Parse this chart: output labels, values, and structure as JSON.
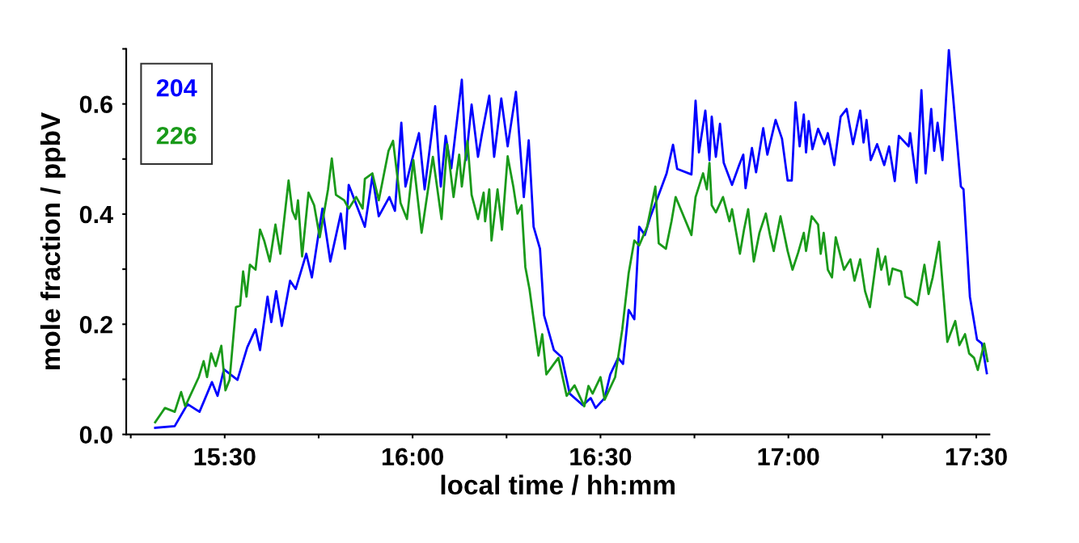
{
  "chart_data": {
    "type": "line",
    "xlabel": "local time / hh:mm",
    "ylabel": "mole fraction / ppbV",
    "xlim": [
      15.238,
      17.535
    ],
    "ylim": [
      0,
      0.7
    ],
    "xticks": [
      {
        "value": 15.25,
        "label": null
      },
      {
        "value": 15.5,
        "label": "15:30"
      },
      {
        "value": 15.75,
        "label": null
      },
      {
        "value": 16,
        "label": "16:00"
      },
      {
        "value": 16.25,
        "label": null
      },
      {
        "value": 16.5,
        "label": "16:30"
      },
      {
        "value": 16.75,
        "label": null
      },
      {
        "value": 17,
        "label": "17:00"
      },
      {
        "value": 17.25,
        "label": null
      },
      {
        "value": 17.5,
        "label": "17:30"
      }
    ],
    "yticks": [
      {
        "value": 0,
        "label": "0.0"
      },
      {
        "value": 0.1,
        "label": null
      },
      {
        "value": 0.2,
        "label": "0.2"
      },
      {
        "value": 0.3,
        "label": null
      },
      {
        "value": 0.4,
        "label": "0.4"
      },
      {
        "value": 0.5,
        "label": null
      },
      {
        "value": 0.6,
        "label": "0.6"
      },
      {
        "value": 0.7,
        "label": null
      }
    ],
    "grid": false,
    "legend": "top left",
    "marker": "none",
    "line_style": "solid",
    "series": [
      {
        "name": "204",
        "color": "#0000ff",
        "x": [
          15.315,
          15.367,
          15.401,
          15.433,
          15.466,
          15.481,
          15.498,
          15.534,
          15.56,
          15.582,
          15.594,
          15.614,
          15.624,
          15.637,
          15.652,
          15.674,
          15.689,
          15.717,
          15.732,
          15.76,
          15.781,
          15.809,
          15.82,
          15.83,
          15.873,
          15.893,
          15.91,
          15.938,
          15.953,
          15.97,
          15.981,
          16.002,
          16.017,
          16.032,
          16.06,
          16.075,
          16.088,
          16.103,
          16.131,
          16.142,
          16.157,
          16.174,
          16.185,
          16.204,
          16.217,
          16.236,
          16.253,
          16.275,
          16.296,
          16.309,
          16.322,
          16.339,
          16.35,
          16.376,
          16.397,
          16.418,
          16.453,
          16.474,
          16.487,
          16.511,
          16.526,
          16.547,
          16.56,
          16.575,
          16.59,
          16.603,
          16.618,
          16.633,
          16.655,
          16.676,
          16.693,
          16.704,
          16.742,
          16.753,
          16.762,
          16.779,
          16.79,
          16.796,
          16.807,
          16.818,
          16.828,
          16.85,
          16.869,
          16.88,
          16.886,
          16.903,
          16.914,
          16.933,
          16.944,
          16.966,
          16.983,
          16.998,
          17.009,
          17.019,
          17.03,
          17.041,
          17.047,
          17.054,
          17.064,
          17.079,
          17.096,
          17.105,
          17.122,
          17.139,
          17.155,
          17.172,
          17.191,
          17.2,
          17.208,
          17.219,
          17.236,
          17.255,
          17.268,
          17.283,
          17.294,
          17.32,
          17.324,
          17.341,
          17.354,
          17.365,
          17.38,
          17.388,
          17.397,
          17.41,
          17.427,
          17.438,
          17.459,
          17.466,
          17.483,
          17.502,
          17.515,
          17.528
        ],
        "values": [
          0.012,
          0.015,
          0.055,
          0.041,
          0.095,
          0.07,
          0.118,
          0.099,
          0.158,
          0.191,
          0.153,
          0.25,
          0.204,
          0.26,
          0.197,
          0.279,
          0.264,
          0.328,
          0.285,
          0.41,
          0.314,
          0.401,
          0.337,
          0.453,
          0.377,
          0.469,
          0.396,
          0.431,
          0.406,
          0.566,
          0.45,
          0.508,
          0.547,
          0.445,
          0.596,
          0.45,
          0.542,
          0.483,
          0.644,
          0.498,
          0.599,
          0.504,
          0.547,
          0.615,
          0.504,
          0.61,
          0.523,
          0.622,
          0.431,
          0.534,
          0.377,
          0.337,
          0.216,
          0.153,
          0.14,
          0.074,
          0.053,
          0.066,
          0.048,
          0.066,
          0.109,
          0.139,
          0.128,
          0.226,
          0.209,
          0.377,
          0.362,
          0.396,
          0.435,
          0.474,
          0.526,
          0.482,
          0.472,
          0.606,
          0.512,
          0.588,
          0.498,
          0.577,
          0.504,
          0.564,
          0.493,
          0.453,
          0.489,
          0.508,
          0.447,
          0.52,
          0.476,
          0.556,
          0.508,
          0.571,
          0.537,
          0.461,
          0.461,
          0.603,
          0.523,
          0.581,
          0.512,
          0.569,
          0.518,
          0.555,
          0.527,
          0.547,
          0.489,
          0.577,
          0.591,
          0.527,
          0.588,
          0.53,
          0.571,
          0.498,
          0.527,
          0.489,
          0.523,
          0.46,
          0.542,
          0.523,
          0.547,
          0.457,
          0.625,
          0.474,
          0.591,
          0.515,
          0.566,
          0.498,
          0.698,
          0.615,
          0.45,
          0.445,
          0.25,
          0.172,
          0.165,
          0.111
        ]
      },
      {
        "name": "226",
        "color": "#1a9a1a",
        "x": [
          15.315,
          15.341,
          15.367,
          15.384,
          15.395,
          15.431,
          15.444,
          15.453,
          15.464,
          15.476,
          15.491,
          15.502,
          15.513,
          15.53,
          15.541,
          15.549,
          15.558,
          15.567,
          15.582,
          15.594,
          15.605,
          15.62,
          15.635,
          15.648,
          15.67,
          15.68,
          15.689,
          15.695,
          15.706,
          15.723,
          15.738,
          15.753,
          15.775,
          15.785,
          15.796,
          15.818,
          15.83,
          15.85,
          15.867,
          15.873,
          15.893,
          15.91,
          15.936,
          15.948,
          15.968,
          15.985,
          16.002,
          16.024,
          16.054,
          16.077,
          16.092,
          16.109,
          16.124,
          16.131,
          16.146,
          16.157,
          16.174,
          16.189,
          16.193,
          16.204,
          16.21,
          16.226,
          16.238,
          16.253,
          16.268,
          16.279,
          16.29,
          16.3,
          16.311,
          16.335,
          16.345,
          16.356,
          16.376,
          16.388,
          16.41,
          16.431,
          16.457,
          16.468,
          16.479,
          16.5,
          16.511,
          16.539,
          16.558,
          16.575,
          16.59,
          16.603,
          16.624,
          16.646,
          16.655,
          16.674,
          16.689,
          16.7,
          16.742,
          16.753,
          16.773,
          16.783,
          16.79,
          16.796,
          16.807,
          16.826,
          16.843,
          16.85,
          16.871,
          16.882,
          16.893,
          16.908,
          16.923,
          16.94,
          16.951,
          16.961,
          16.979,
          16.998,
          17.011,
          17.026,
          17.041,
          17.047,
          17.062,
          17.079,
          17.086,
          17.094,
          17.105,
          17.116,
          17.126,
          17.148,
          17.165,
          17.176,
          17.191,
          17.204,
          17.217,
          17.238,
          17.247,
          17.258,
          17.268,
          17.277,
          17.3,
          17.311,
          17.326,
          17.343,
          17.362,
          17.373,
          17.384,
          17.401,
          17.423,
          17.444,
          17.455,
          17.47,
          17.481,
          17.494,
          17.504,
          17.521,
          17.53
        ],
        "values": [
          0.022,
          0.048,
          0.041,
          0.077,
          0.051,
          0.104,
          0.133,
          0.104,
          0.147,
          0.124,
          0.161,
          0.08,
          0.099,
          0.231,
          0.234,
          0.296,
          0.25,
          0.308,
          0.299,
          0.372,
          0.352,
          0.314,
          0.381,
          0.328,
          0.461,
          0.406,
          0.391,
          0.425,
          0.323,
          0.439,
          0.416,
          0.358,
          0.445,
          0.501,
          0.435,
          0.425,
          0.41,
          0.431,
          0.41,
          0.464,
          0.474,
          0.425,
          0.515,
          0.533,
          0.42,
          0.391,
          0.498,
          0.366,
          0.504,
          0.391,
          0.527,
          0.431,
          0.508,
          0.45,
          0.533,
          0.435,
          0.391,
          0.439,
          0.387,
          0.445,
          0.352,
          0.445,
          0.372,
          0.505,
          0.45,
          0.401,
          0.416,
          0.304,
          0.264,
          0.143,
          0.182,
          0.109,
          0.128,
          0.139,
          0.07,
          0.089,
          0.051,
          0.088,
          0.074,
          0.104,
          0.063,
          0.104,
          0.191,
          0.293,
          0.352,
          0.343,
          0.377,
          0.45,
          0.347,
          0.337,
          0.387,
          0.431,
          0.362,
          0.431,
          0.474,
          0.445,
          0.493,
          0.416,
          0.403,
          0.431,
          0.387,
          0.409,
          0.328,
          0.372,
          0.409,
          0.314,
          0.366,
          0.401,
          0.362,
          0.333,
          0.396,
          0.333,
          0.299,
          0.33,
          0.366,
          0.333,
          0.396,
          0.381,
          0.328,
          0.366,
          0.299,
          0.285,
          0.358,
          0.299,
          0.318,
          0.279,
          0.318,
          0.26,
          0.231,
          0.337,
          0.299,
          0.323,
          0.272,
          0.301,
          0.296,
          0.25,
          0.245,
          0.235,
          0.308,
          0.255,
          0.285,
          0.35,
          0.168,
          0.206,
          0.162,
          0.182,
          0.147,
          0.139,
          0.117,
          0.165,
          0.133
        ]
      }
    ]
  }
}
